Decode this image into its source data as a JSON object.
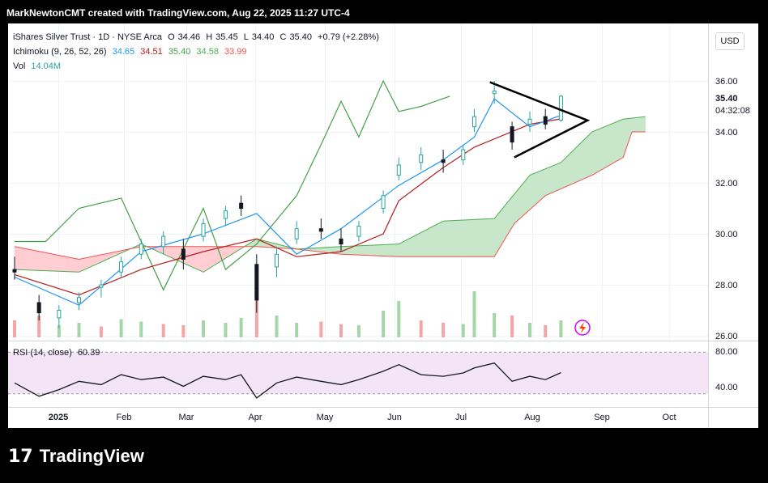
{
  "header": {
    "text": "MarkNewtonCMT created with TradingView.com, Aug 22, 2025 11:27 UTC-4"
  },
  "legend": {
    "symbol": "iShares Silver Trust · 1D · NYSE Arca",
    "ohlc": {
      "o_label": "O",
      "o": "34.46",
      "h_label": "H",
      "h": "35.45",
      "l_label": "L",
      "l": "34.40",
      "c_label": "C",
      "c": "35.40",
      "change": "+0.79 (+2.28%)"
    },
    "ichimoku": {
      "label": "Ichimoku (9, 26, 52, 26)",
      "conversion": "34.65",
      "base": "34.51",
      "lagging": "35.40",
      "span_a": "34.58",
      "span_b": "33.99"
    },
    "volume": {
      "label": "Vol",
      "value": "14.04M"
    },
    "rsi": {
      "label": "RSI (14, close)",
      "value": "60.39"
    }
  },
  "price_axis": {
    "currency": "USD",
    "ticks": [
      "36.00",
      "34.00",
      "32.00",
      "30.00",
      "28.00",
      "26.00"
    ],
    "last_price": "35.40",
    "countdown": "04:32:08"
  },
  "rsi_axis": {
    "ticks": [
      "80.00",
      "40.00"
    ]
  },
  "time_axis": {
    "labels": [
      "2025",
      "Feb",
      "Mar",
      "Apr",
      "May",
      "Jun",
      "Jul",
      "Aug",
      "Sep",
      "Oct"
    ]
  },
  "colors": {
    "up": "#26a69a",
    "down": "#131722",
    "tenkan": "#2196f3",
    "kijun": "#b71c1c",
    "chikou": "#43a047",
    "span_a": "#4caf50",
    "span_b": "#ef5350",
    "cloud_bull": "#c8e6c9",
    "cloud_bear": "#ffcdd2",
    "rsi_line": "#131722",
    "rsi_band": "#f3e5f5",
    "vol_up": "#a5d6a7",
    "vol_down": "#f4a6a6",
    "pattern": "#000000"
  },
  "brand": {
    "logo_glyph": "17",
    "name": "TradingView"
  },
  "chart_data": {
    "type": "candlestick",
    "title": "iShares Silver Trust",
    "interval": "1D",
    "exchange": "NYSE Arca",
    "currency": "USD",
    "x_range": [
      "2024-12-19",
      "2025-10-09"
    ],
    "y_range": [
      26.0,
      36.7
    ],
    "grid": true,
    "candles": [
      {
        "date": "2024-12-19",
        "o": 28.6,
        "h": 29.1,
        "l": 28.2,
        "c": 28.5
      },
      {
        "date": "2024-12-30",
        "o": 27.3,
        "h": 27.6,
        "l": 26.6,
        "c": 26.9
      },
      {
        "date": "2025-01-08",
        "o": 26.7,
        "h": 27.2,
        "l": 26.3,
        "c": 27.0
      },
      {
        "date": "2025-01-17",
        "o": 27.3,
        "h": 27.7,
        "l": 27.0,
        "c": 27.5
      },
      {
        "date": "2025-01-27",
        "o": 27.9,
        "h": 28.2,
        "l": 27.5,
        "c": 28.0
      },
      {
        "date": "2025-02-05",
        "o": 28.5,
        "h": 29.1,
        "l": 28.3,
        "c": 28.9
      },
      {
        "date": "2025-02-14",
        "o": 29.2,
        "h": 29.8,
        "l": 29.0,
        "c": 29.6
      },
      {
        "date": "2025-02-24",
        "o": 29.5,
        "h": 30.1,
        "l": 29.2,
        "c": 29.9
      },
      {
        "date": "2025-03-05",
        "o": 29.4,
        "h": 29.8,
        "l": 28.6,
        "c": 29.0
      },
      {
        "date": "2025-03-14",
        "o": 29.9,
        "h": 30.6,
        "l": 29.7,
        "c": 30.4
      },
      {
        "date": "2025-03-24",
        "o": 30.6,
        "h": 31.1,
        "l": 30.3,
        "c": 30.9
      },
      {
        "date": "2025-03-31",
        "o": 31.2,
        "h": 31.5,
        "l": 30.7,
        "c": 31.0
      },
      {
        "date": "2025-04-07",
        "o": 28.8,
        "h": 29.2,
        "l": 26.9,
        "c": 27.4
      },
      {
        "date": "2025-04-16",
        "o": 28.7,
        "h": 29.5,
        "l": 28.3,
        "c": 29.2
      },
      {
        "date": "2025-04-25",
        "o": 29.8,
        "h": 30.5,
        "l": 29.6,
        "c": 30.2
      },
      {
        "date": "2025-05-06",
        "o": 30.2,
        "h": 30.6,
        "l": 29.8,
        "c": 30.1
      },
      {
        "date": "2025-05-15",
        "o": 29.8,
        "h": 30.2,
        "l": 29.3,
        "c": 29.6
      },
      {
        "date": "2025-05-23",
        "o": 29.9,
        "h": 30.5,
        "l": 29.7,
        "c": 30.3
      },
      {
        "date": "2025-06-03",
        "o": 31.0,
        "h": 31.7,
        "l": 30.8,
        "c": 31.5
      },
      {
        "date": "2025-06-10",
        "o": 32.3,
        "h": 33.0,
        "l": 32.1,
        "c": 32.7
      },
      {
        "date": "2025-06-20",
        "o": 32.8,
        "h": 33.4,
        "l": 32.5,
        "c": 33.1
      },
      {
        "date": "2025-06-30",
        "o": 32.9,
        "h": 33.3,
        "l": 32.4,
        "c": 32.8
      },
      {
        "date": "2025-07-09",
        "o": 32.9,
        "h": 33.5,
        "l": 32.7,
        "c": 33.3
      },
      {
        "date": "2025-07-14",
        "o": 34.2,
        "h": 34.9,
        "l": 34.0,
        "c": 34.6
      },
      {
        "date": "2025-07-23",
        "o": 35.5,
        "h": 36.0,
        "l": 35.1,
        "c": 35.6
      },
      {
        "date": "2025-07-31",
        "o": 34.2,
        "h": 34.4,
        "l": 33.3,
        "c": 33.6
      },
      {
        "date": "2025-08-08",
        "o": 34.3,
        "h": 34.8,
        "l": 34.0,
        "c": 34.5
      },
      {
        "date": "2025-08-15",
        "o": 34.6,
        "h": 34.9,
        "l": 34.1,
        "c": 34.3
      },
      {
        "date": "2025-08-22",
        "o": 34.46,
        "h": 35.45,
        "l": 34.4,
        "c": 35.4
      }
    ],
    "tenkan": [
      {
        "date": "2024-12-19",
        "v": 28.3
      },
      {
        "date": "2025-01-17",
        "v": 27.2
      },
      {
        "date": "2025-02-14",
        "v": 29.3
      },
      {
        "date": "2025-03-14",
        "v": 30.0
      },
      {
        "date": "2025-04-07",
        "v": 30.8
      },
      {
        "date": "2025-04-25",
        "v": 29.2
      },
      {
        "date": "2025-05-15",
        "v": 30.2
      },
      {
        "date": "2025-06-10",
        "v": 31.9
      },
      {
        "date": "2025-06-30",
        "v": 32.9
      },
      {
        "date": "2025-07-14",
        "v": 33.8
      },
      {
        "date": "2025-07-23",
        "v": 35.3
      },
      {
        "date": "2025-08-08",
        "v": 34.2
      },
      {
        "date": "2025-08-22",
        "v": 34.65
      }
    ],
    "kijun": [
      {
        "date": "2024-12-19",
        "v": 28.4
      },
      {
        "date": "2025-01-17",
        "v": 27.6
      },
      {
        "date": "2025-02-14",
        "v": 28.6
      },
      {
        "date": "2025-03-14",
        "v": 29.3
      },
      {
        "date": "2025-04-07",
        "v": 29.8
      },
      {
        "date": "2025-04-25",
        "v": 29.1
      },
      {
        "date": "2025-05-15",
        "v": 29.3
      },
      {
        "date": "2025-06-03",
        "v": 30.0
      },
      {
        "date": "2025-06-10",
        "v": 31.3
      },
      {
        "date": "2025-06-30",
        "v": 32.6
      },
      {
        "date": "2025-07-14",
        "v": 33.4
      },
      {
        "date": "2025-08-08",
        "v": 34.3
      },
      {
        "date": "2025-08-22",
        "v": 34.51
      }
    ],
    "chikou": [
      {
        "date": "2024-12-19",
        "v": 29.7
      },
      {
        "date": "2025-01-02",
        "v": 29.7
      },
      {
        "date": "2025-01-17",
        "v": 31.0
      },
      {
        "date": "2025-02-05",
        "v": 31.4
      },
      {
        "date": "2025-02-24",
        "v": 27.8
      },
      {
        "date": "2025-03-14",
        "v": 31.0
      },
      {
        "date": "2025-03-24",
        "v": 28.6
      },
      {
        "date": "2025-04-07",
        "v": 29.6
      },
      {
        "date": "2025-04-25",
        "v": 31.5
      },
      {
        "date": "2025-05-06",
        "v": 33.5
      },
      {
        "date": "2025-05-15",
        "v": 35.2
      },
      {
        "date": "2025-05-23",
        "v": 33.8
      },
      {
        "date": "2025-06-03",
        "v": 36.0
      },
      {
        "date": "2025-06-10",
        "v": 34.8
      },
      {
        "date": "2025-06-20",
        "v": 35.0
      },
      {
        "date": "2025-07-03",
        "v": 35.4
      }
    ],
    "senkou_a": [
      {
        "date": "2024-12-19",
        "v": 28.6
      },
      {
        "date": "2025-01-17",
        "v": 28.5
      },
      {
        "date": "2025-02-14",
        "v": 29.6
      },
      {
        "date": "2025-03-14",
        "v": 28.5
      },
      {
        "date": "2025-04-07",
        "v": 29.8
      },
      {
        "date": "2025-04-25",
        "v": 29.4
      },
      {
        "date": "2025-05-15",
        "v": 29.5
      },
      {
        "date": "2025-06-10",
        "v": 29.6
      },
      {
        "date": "2025-06-30",
        "v": 30.5
      },
      {
        "date": "2025-07-23",
        "v": 30.6
      },
      {
        "date": "2025-08-08",
        "v": 32.3
      },
      {
        "date": "2025-08-22",
        "v": 32.8
      },
      {
        "date": "2025-09-05",
        "v": 34.0
      },
      {
        "date": "2025-09-19",
        "v": 34.5
      },
      {
        "date": "2025-09-29",
        "v": 34.6
      }
    ],
    "senkou_b": [
      {
        "date": "2024-12-19",
        "v": 29.5
      },
      {
        "date": "2025-01-17",
        "v": 29.0
      },
      {
        "date": "2025-02-14",
        "v": 29.5
      },
      {
        "date": "2025-03-14",
        "v": 29.5
      },
      {
        "date": "2025-04-07",
        "v": 29.5
      },
      {
        "date": "2025-04-25",
        "v": 29.4
      },
      {
        "date": "2025-05-15",
        "v": 29.2
      },
      {
        "date": "2025-06-10",
        "v": 29.1
      },
      {
        "date": "2025-06-30",
        "v": 29.1
      },
      {
        "date": "2025-07-23",
        "v": 29.1
      },
      {
        "date": "2025-08-01",
        "v": 30.4
      },
      {
        "date": "2025-08-15",
        "v": 31.5
      },
      {
        "date": "2025-09-05",
        "v": 32.3
      },
      {
        "date": "2025-09-19",
        "v": 33.0
      },
      {
        "date": "2025-09-23",
        "v": 34.0
      },
      {
        "date": "2025-09-29",
        "v": 34.0
      }
    ],
    "volume": [
      {
        "date": "2024-12-19",
        "v": 14,
        "dir": "down"
      },
      {
        "date": "2024-12-30",
        "v": 18,
        "dir": "down"
      },
      {
        "date": "2025-01-08",
        "v": 10,
        "dir": "up"
      },
      {
        "date": "2025-01-17",
        "v": 12,
        "dir": "up"
      },
      {
        "date": "2025-01-27",
        "v": 9,
        "dir": "down"
      },
      {
        "date": "2025-02-05",
        "v": 15,
        "dir": "up"
      },
      {
        "date": "2025-02-14",
        "v": 13,
        "dir": "up"
      },
      {
        "date": "2025-02-24",
        "v": 11,
        "dir": "down"
      },
      {
        "date": "2025-03-05",
        "v": 10,
        "dir": "down"
      },
      {
        "date": "2025-03-14",
        "v": 14,
        "dir": "up"
      },
      {
        "date": "2025-03-24",
        "v": 12,
        "dir": "up"
      },
      {
        "date": "2025-03-31",
        "v": 16,
        "dir": "up"
      },
      {
        "date": "2025-04-07",
        "v": 36,
        "dir": "down"
      },
      {
        "date": "2025-04-16",
        "v": 18,
        "dir": "up"
      },
      {
        "date": "2025-04-25",
        "v": 12,
        "dir": "up"
      },
      {
        "date": "2025-05-06",
        "v": 13,
        "dir": "down"
      },
      {
        "date": "2025-05-15",
        "v": 11,
        "dir": "down"
      },
      {
        "date": "2025-05-23",
        "v": 10,
        "dir": "up"
      },
      {
        "date": "2025-06-03",
        "v": 22,
        "dir": "up"
      },
      {
        "date": "2025-06-10",
        "v": 30,
        "dir": "up"
      },
      {
        "date": "2025-06-20",
        "v": 14,
        "dir": "down"
      },
      {
        "date": "2025-06-30",
        "v": 12,
        "dir": "down"
      },
      {
        "date": "2025-07-09",
        "v": 11,
        "dir": "up"
      },
      {
        "date": "2025-07-14",
        "v": 38,
        "dir": "up"
      },
      {
        "date": "2025-07-23",
        "v": 20,
        "dir": "up"
      },
      {
        "date": "2025-07-31",
        "v": 18,
        "dir": "down"
      },
      {
        "date": "2025-08-08",
        "v": 12,
        "dir": "up"
      },
      {
        "date": "2025-08-15",
        "v": 10,
        "dir": "down"
      },
      {
        "date": "2025-08-22",
        "v": 14,
        "dir": "up"
      }
    ],
    "rsi": [
      {
        "date": "2024-12-19",
        "v": 48
      },
      {
        "date": "2024-12-30",
        "v": 32
      },
      {
        "date": "2025-01-08",
        "v": 40
      },
      {
        "date": "2025-01-17",
        "v": 50
      },
      {
        "date": "2025-01-27",
        "v": 46
      },
      {
        "date": "2025-02-05",
        "v": 58
      },
      {
        "date": "2025-02-14",
        "v": 52
      },
      {
        "date": "2025-02-24",
        "v": 55
      },
      {
        "date": "2025-03-05",
        "v": 44
      },
      {
        "date": "2025-03-14",
        "v": 56
      },
      {
        "date": "2025-03-24",
        "v": 52
      },
      {
        "date": "2025-03-31",
        "v": 58
      },
      {
        "date": "2025-04-07",
        "v": 30
      },
      {
        "date": "2025-04-16",
        "v": 48
      },
      {
        "date": "2025-04-25",
        "v": 55
      },
      {
        "date": "2025-05-06",
        "v": 50
      },
      {
        "date": "2025-05-15",
        "v": 46
      },
      {
        "date": "2025-05-23",
        "v": 52
      },
      {
        "date": "2025-06-03",
        "v": 62
      },
      {
        "date": "2025-06-10",
        "v": 70
      },
      {
        "date": "2025-06-20",
        "v": 58
      },
      {
        "date": "2025-06-30",
        "v": 56
      },
      {
        "date": "2025-07-09",
        "v": 60
      },
      {
        "date": "2025-07-14",
        "v": 66
      },
      {
        "date": "2025-07-23",
        "v": 72
      },
      {
        "date": "2025-07-31",
        "v": 50
      },
      {
        "date": "2025-08-08",
        "v": 56
      },
      {
        "date": "2025-08-15",
        "v": 52
      },
      {
        "date": "2025-08-22",
        "v": 60.39
      }
    ],
    "rsi_range": [
      25,
      95
    ],
    "rsi_band": [
      35,
      85
    ],
    "triangle_pattern": [
      {
        "date": "2025-07-21",
        "v": 35.95
      },
      {
        "date": "2025-09-03",
        "v": 34.45
      },
      {
        "date": "2025-08-01",
        "v": 33.0
      }
    ],
    "last_price": 35.4
  }
}
